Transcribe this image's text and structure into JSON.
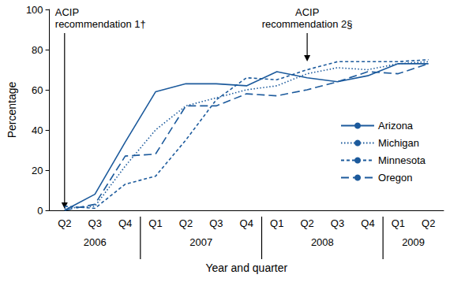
{
  "chart_data": {
    "type": "line",
    "x_label": "Year and quarter",
    "y_label": "Percentage",
    "categories": [
      "Q2",
      "Q3",
      "Q4",
      "Q1",
      "Q2",
      "Q3",
      "Q4",
      "Q1",
      "Q2",
      "Q3",
      "Q4",
      "Q1",
      "Q2"
    ],
    "year_groups": [
      {
        "label": "2006",
        "quarters": 3
      },
      {
        "label": "2007",
        "quarters": 4
      },
      {
        "label": "2008",
        "quarters": 4
      },
      {
        "label": "2009",
        "quarters": 2
      }
    ],
    "series": [
      {
        "name": "Arizona",
        "color": "#1c5a9c",
        "line_style": "solid",
        "values": [
          0,
          8,
          34,
          59,
          63,
          63,
          62,
          69,
          66,
          64,
          67,
          73,
          73
        ]
      },
      {
        "name": "Michigan",
        "color": "#1c5a9c",
        "line_style": "dotted",
        "values": [
          1,
          2,
          22,
          40,
          52,
          56,
          60,
          62,
          68,
          71,
          70,
          73,
          74
        ]
      },
      {
        "name": "Minnesota",
        "color": "#1c5a9c",
        "line_style": "dashed",
        "values": [
          2,
          1,
          13,
          17,
          35,
          55,
          66,
          65,
          70,
          74,
          74,
          74,
          75
        ]
      },
      {
        "name": "Oregon",
        "color": "#1c5a9c",
        "line_style": "longdash",
        "values": [
          0,
          3,
          27,
          28,
          52,
          52,
          58,
          57,
          60,
          64,
          69,
          68,
          73
        ]
      }
    ],
    "ylim": [
      0,
      100
    ],
    "yticks": [
      0,
      20,
      40,
      60,
      80,
      100
    ],
    "grid": false,
    "legend": "right",
    "annotations": [
      {
        "text": "ACIP recommendation 1†",
        "at": 0
      },
      {
        "text": "ACIP recommendation 2§",
        "at": 8
      }
    ]
  }
}
